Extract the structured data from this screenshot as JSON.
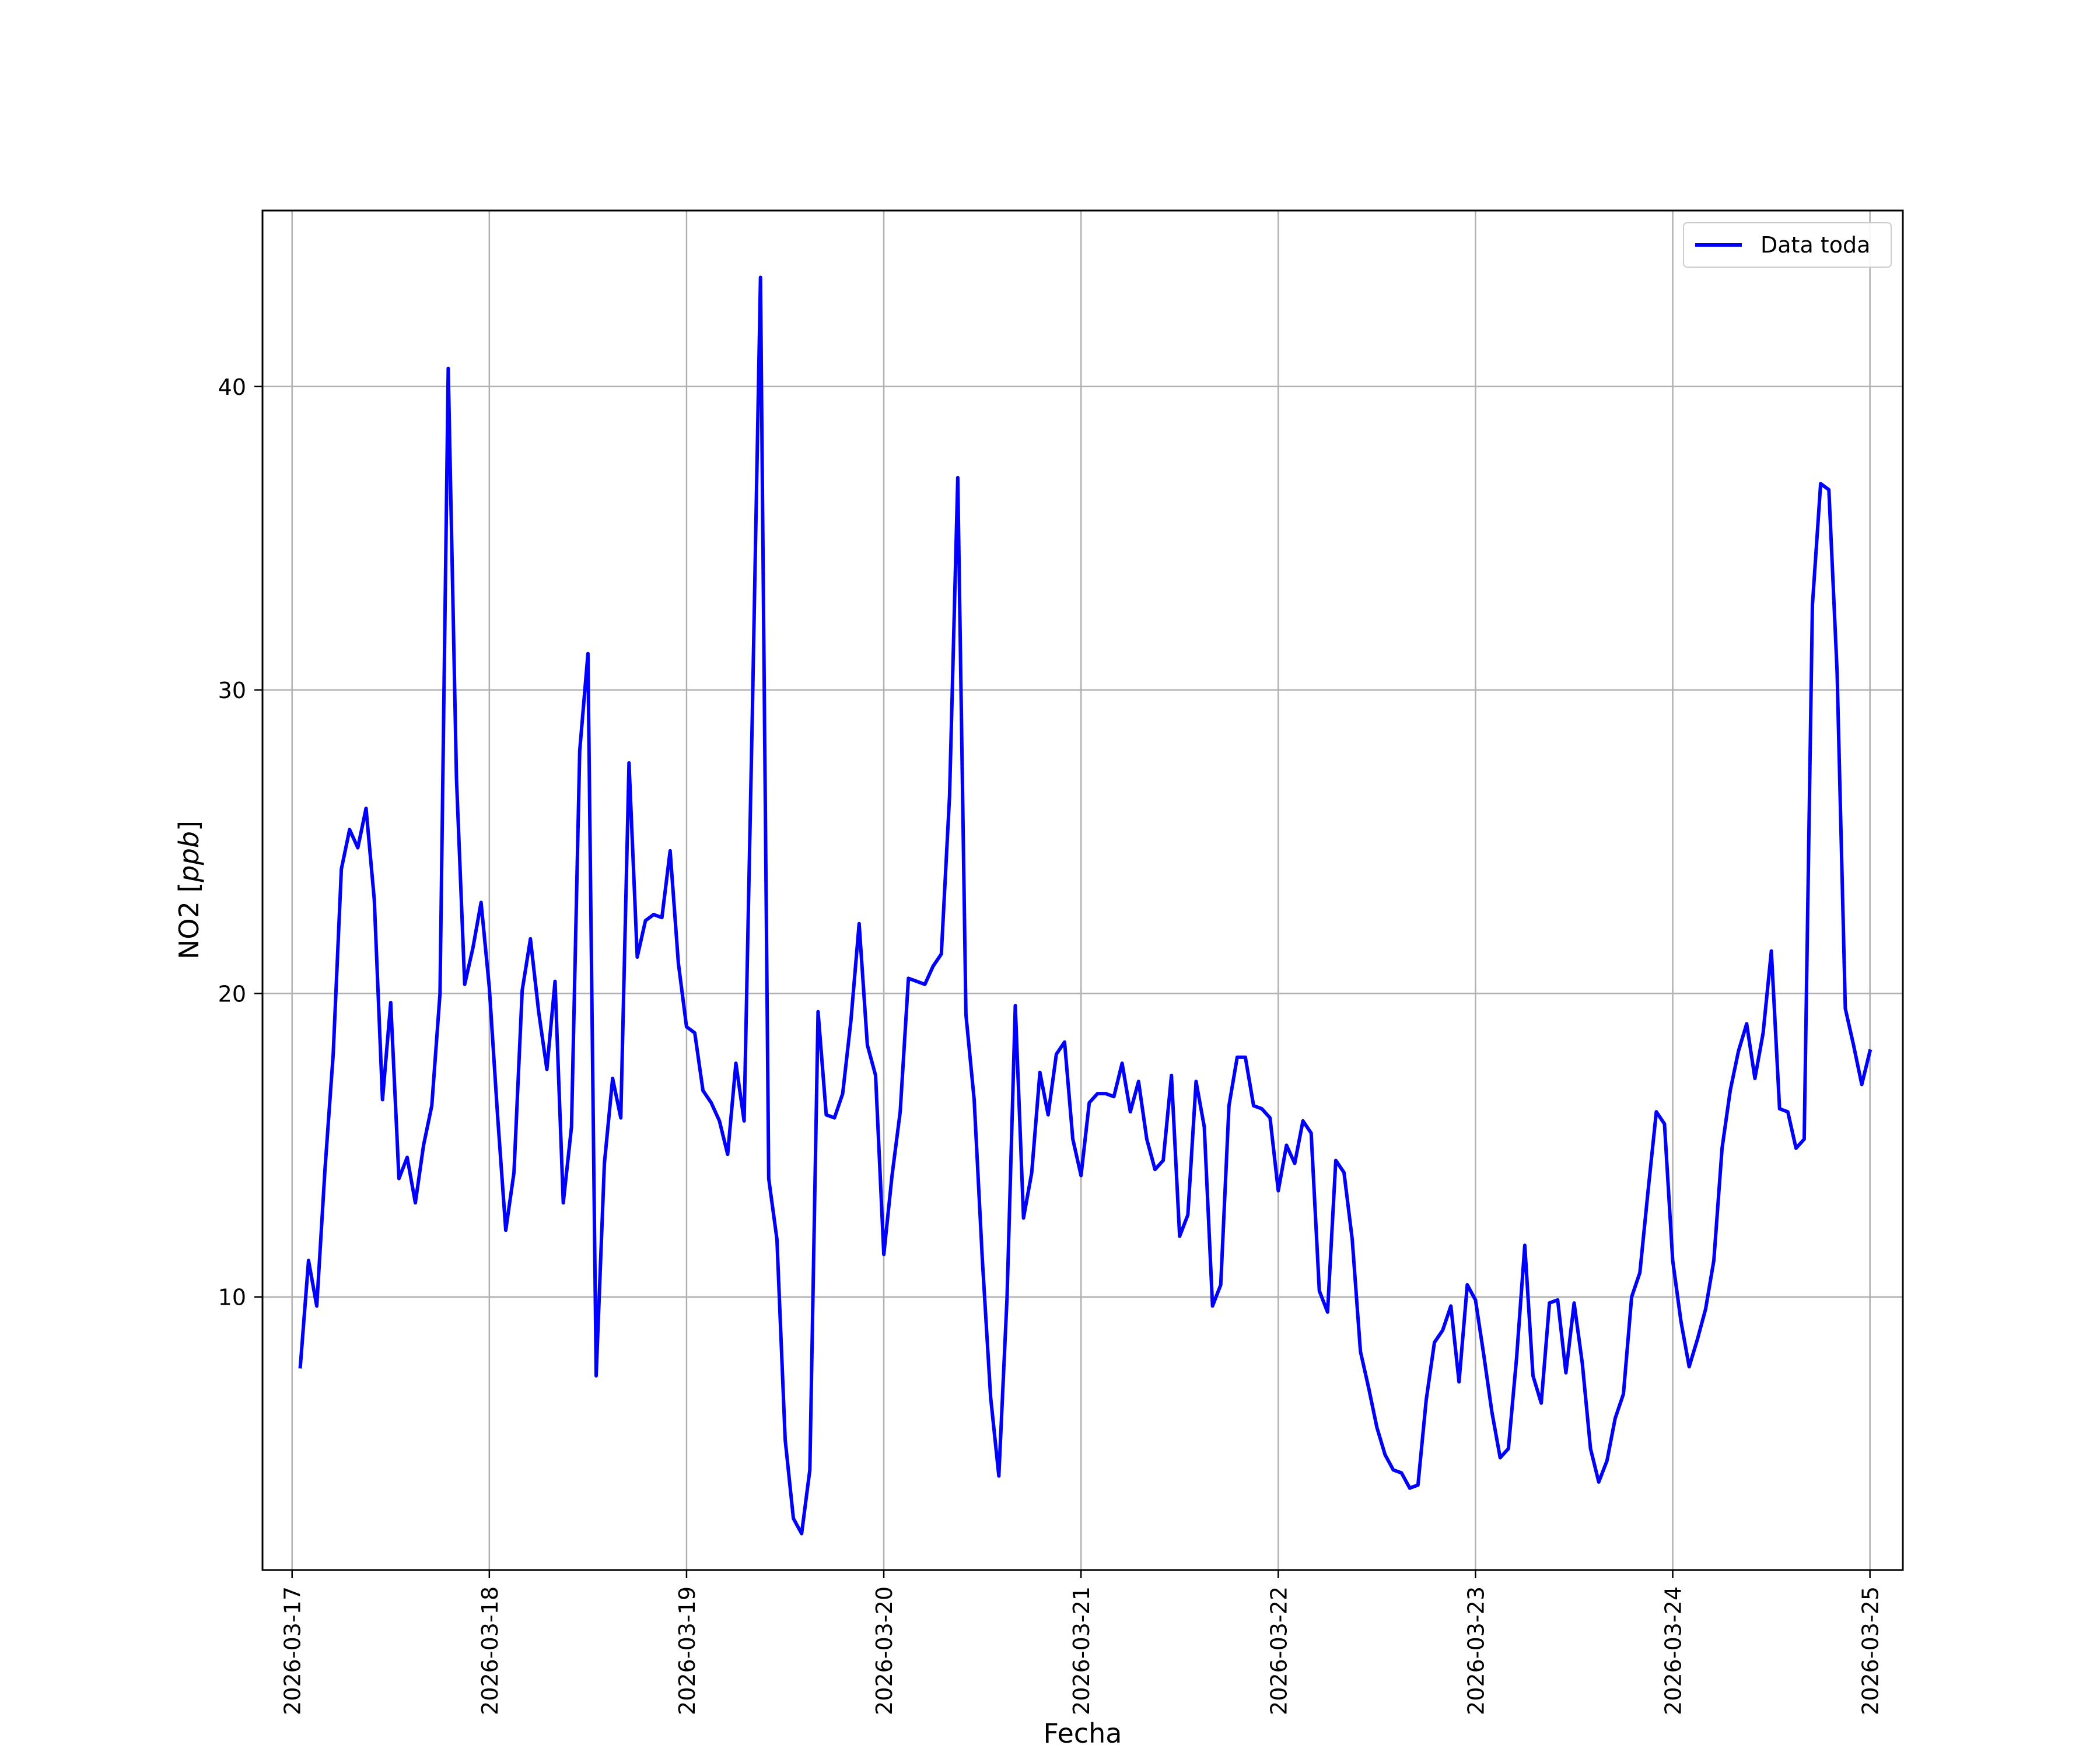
{
  "chart_data": {
    "type": "line",
    "title": "",
    "xlabel": "Fecha",
    "ylabel_main": "NO2 [",
    "ylabel_unit": "ppb",
    "ylabel_close": "]",
    "xlim": [
      "2026-03-16T20:24:00",
      "2026-03-25T04:00:00"
    ],
    "ylim": [
      1.0,
      45.8
    ],
    "grid": true,
    "legend_position": "top-right",
    "x_ticks": [
      "2026-03-17",
      "2026-03-18",
      "2026-03-19",
      "2026-03-20",
      "2026-03-21",
      "2026-03-22",
      "2026-03-23",
      "2026-03-24",
      "2026-03-25"
    ],
    "y_ticks": [
      10,
      20,
      30,
      40
    ],
    "series": [
      {
        "name": "Data toda",
        "color": "#0000ff",
        "start": "2026-03-17T01:00:00",
        "step_hours": 1,
        "values": [
          7.7,
          11.2,
          9.7,
          14.2,
          18.0,
          24.1,
          25.4,
          24.8,
          26.1,
          23.1,
          16.5,
          19.7,
          13.9,
          14.6,
          13.1,
          15.0,
          16.3,
          20.0,
          40.6,
          27.1,
          20.3,
          21.5,
          23.0,
          20.2,
          16.0,
          12.2,
          14.1,
          20.1,
          21.8,
          19.4,
          17.5,
          20.4,
          13.1,
          15.6,
          28.0,
          31.2,
          7.4,
          14.4,
          17.2,
          15.9,
          27.6,
          21.2,
          22.4,
          22.6,
          22.5,
          24.7,
          21.0,
          18.9,
          18.7,
          16.8,
          16.4,
          15.8,
          14.7,
          17.7,
          15.8,
          29.2,
          43.6,
          13.9,
          11.9,
          5.3,
          2.7,
          2.2,
          4.3,
          19.4,
          16.0,
          15.9,
          16.7,
          19.1,
          22.3,
          18.3,
          17.3,
          11.4,
          14.0,
          16.1,
          20.5,
          20.4,
          20.3,
          20.9,
          21.3,
          26.5,
          37.0,
          19.3,
          16.5,
          11.2,
          6.7,
          4.1,
          10.0,
          19.6,
          12.6,
          14.1,
          17.4,
          16.0,
          18.0,
          18.4,
          15.2,
          14.0,
          16.4,
          16.7,
          16.7,
          16.6,
          17.7,
          16.1,
          17.1,
          15.2,
          14.2,
          14.5,
          17.3,
          12.0,
          12.7,
          17.1,
          15.6,
          9.7,
          10.4,
          16.3,
          17.9,
          17.9,
          16.3,
          16.2,
          15.9,
          13.5,
          15.0,
          14.4,
          15.8,
          15.4,
          10.2,
          9.5,
          14.5,
          14.1,
          11.9,
          8.2,
          7.0,
          5.7,
          4.8,
          4.3,
          4.2,
          3.7,
          3.8,
          6.6,
          8.5,
          8.9,
          9.7,
          7.2,
          10.4,
          9.9,
          8.1,
          6.2,
          4.7,
          5.0,
          8.0,
          11.7,
          7.4,
          6.5,
          9.8,
          9.9,
          7.5,
          9.8,
          7.8,
          5.0,
          3.9,
          4.6,
          6.0,
          6.8,
          10.0,
          10.8,
          13.5,
          16.1,
          15.7,
          11.2,
          9.2,
          7.7,
          8.6,
          9.6,
          11.2,
          14.9,
          16.8,
          18.1,
          19.0,
          17.2,
          18.7,
          21.4,
          16.2,
          16.1,
          14.9,
          15.2,
          32.8,
          36.8,
          36.6,
          30.6,
          19.5,
          18.3,
          17.0,
          18.1
        ]
      }
    ]
  }
}
